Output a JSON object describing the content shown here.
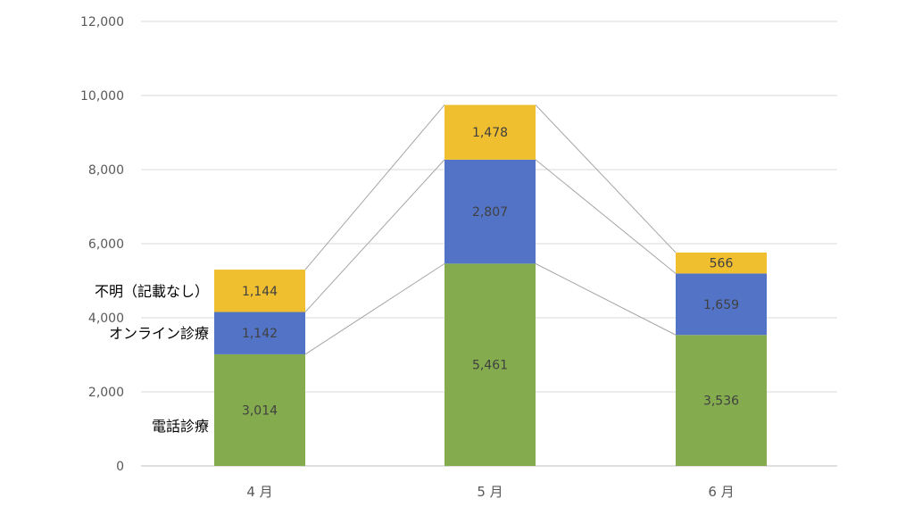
{
  "chart_data": {
    "type": "bar",
    "stacked": true,
    "categories": [
      "4 月",
      "5 月",
      "6 月"
    ],
    "series": [
      {
        "name": "電話診療",
        "values": [
          3014,
          5461,
          3536
        ],
        "color": "#84ac4f"
      },
      {
        "name": "オンライン診療",
        "values": [
          1142,
          2807,
          1659
        ],
        "color": "#5374c6"
      },
      {
        "name": "不明（記載なし）",
        "values": [
          1144,
          1478,
          566
        ],
        "color": "#f0bf2f"
      }
    ],
    "data_labels": [
      [
        "3,014",
        "5,461",
        "3,536"
      ],
      [
        "1,142",
        "2,807",
        "1,659"
      ],
      [
        "1,144",
        "1,478",
        "566"
      ]
    ],
    "y_ticks": [
      "0",
      "2,000",
      "4,000",
      "6,000",
      "8,000",
      "10,000",
      "12,000"
    ],
    "ylim": [
      0,
      12000
    ],
    "grid": true,
    "series_lines": true,
    "title": "",
    "xlabel": "",
    "ylabel": ""
  }
}
